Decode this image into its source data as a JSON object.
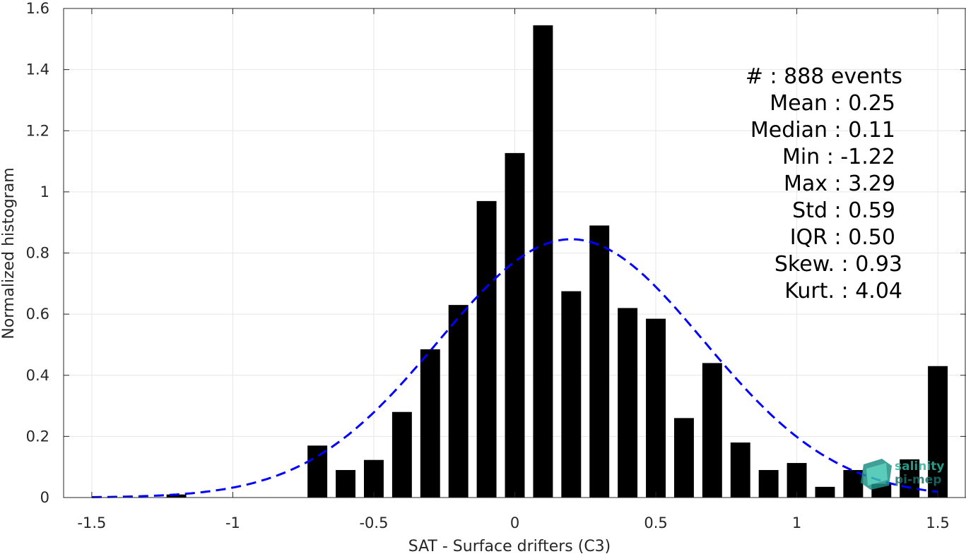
{
  "chart_data": {
    "type": "bar",
    "xlabel": "SAT - Surface drifters (C3)",
    "ylabel": "Normalized histogram",
    "xlim": [
      -1.6,
      1.6
    ],
    "ylim": [
      0,
      1.6
    ],
    "x_ticks": [
      "-1.5",
      "-1",
      "-0.5",
      "0",
      "0.5",
      "1",
      "1.5"
    ],
    "y_ticks": [
      "0",
      "0.2",
      "0.4",
      "0.6",
      "0.8",
      "1",
      "1.2",
      "1.4",
      "1.6"
    ],
    "grid": true,
    "bar_width": 0.07,
    "bar_color": "#000000",
    "fit_color": "#0000ff",
    "bars": {
      "x": [
        -1.2,
        -0.7,
        -0.6,
        -0.5,
        -0.4,
        -0.3,
        -0.2,
        -0.1,
        0.0,
        0.1,
        0.2,
        0.3,
        0.4,
        0.5,
        0.6,
        0.7,
        0.8,
        0.9,
        1.0,
        1.1,
        1.2,
        1.3,
        1.4,
        1.5
      ],
      "values": [
        0.01,
        0.17,
        0.09,
        0.123,
        0.28,
        0.485,
        0.63,
        0.97,
        1.127,
        1.545,
        0.675,
        0.89,
        0.62,
        0.585,
        0.26,
        0.44,
        0.18,
        0.09,
        0.113,
        0.035,
        0.09,
        0.045,
        0.125,
        0.43
      ]
    },
    "fit_curve": {
      "style": "dashed",
      "mean": 0.2,
      "std": 0.47,
      "peak": 0.845
    }
  },
  "stats": [
    {
      "label": "#  : 888 events"
    },
    {
      "label": "Mean : 0.25"
    },
    {
      "label": "Median : 0.11"
    },
    {
      "label": "Min : -1.22"
    },
    {
      "label": "Max : 3.29"
    },
    {
      "label": "Std : 0.59"
    },
    {
      "label": "IQR : 0.50"
    },
    {
      "label": "Skew. : 0.93"
    },
    {
      "label": "Kurt. : 4.04"
    }
  ],
  "logo": {
    "line1": "salinity",
    "line2": "pi-mep",
    "color1": "#2bb5a0",
    "color2": "#1f6f6a"
  }
}
